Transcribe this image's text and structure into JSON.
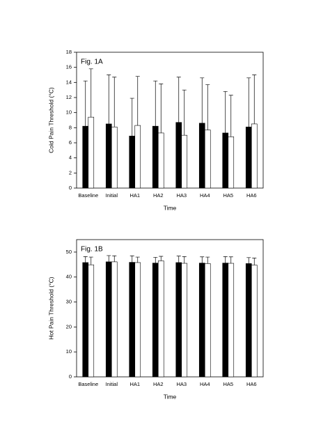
{
  "chart_data": [
    {
      "type": "bar",
      "annotation": "Fig. 1A",
      "x_label": "Time",
      "y_label": "Cold Pain Threshold (°C)",
      "categories": [
        "Baseline",
        "Initial",
        "HA1",
        "HA2",
        "HA3",
        "HA4",
        "HA5",
        "HA6"
      ],
      "series": [
        {
          "color": "#000000",
          "values": [
            8.2,
            8.5,
            6.9,
            8.2,
            8.7,
            8.6,
            7.3,
            8.1
          ],
          "errors": [
            6.0,
            6.5,
            5.0,
            6.0,
            6.0,
            6.0,
            5.5,
            6.5
          ]
        },
        {
          "color": "#ffffff",
          "values": [
            9.4,
            8.1,
            8.3,
            7.3,
            7.0,
            7.7,
            6.8,
            8.5
          ],
          "errors": [
            6.4,
            6.6,
            6.5,
            6.5,
            6.0,
            6.0,
            5.5,
            6.5
          ]
        }
      ],
      "ylim": [
        0,
        18
      ],
      "yticks": [
        0,
        2,
        4,
        6,
        8,
        10,
        12,
        14,
        16,
        18
      ]
    },
    {
      "type": "bar",
      "annotation": "Fig. 1B",
      "x_label": "Time",
      "y_label": "Hot Pain Threshold (°C)",
      "categories": [
        "Baseline",
        "Initial",
        "HA1",
        "HA2",
        "HA3",
        "HA4",
        "HA5",
        "HA6"
      ],
      "series": [
        {
          "color": "#000000",
          "values": [
            45.8,
            46.1,
            45.9,
            45.6,
            45.8,
            45.6,
            45.6,
            45.4
          ],
          "errors": [
            2.4,
            2.5,
            2.6,
            2.3,
            2.6,
            2.5,
            2.6,
            2.4
          ]
        },
        {
          "color": "#ffffff",
          "values": [
            44.9,
            46.1,
            45.8,
            46.5,
            45.5,
            45.4,
            45.5,
            44.8
          ],
          "errors": [
            3.1,
            2.4,
            2.2,
            1.8,
            2.7,
            2.6,
            2.6,
            2.8
          ]
        }
      ],
      "ylim": [
        0,
        55
      ],
      "yticks": [
        0,
        10,
        20,
        30,
        40,
        50
      ]
    }
  ]
}
